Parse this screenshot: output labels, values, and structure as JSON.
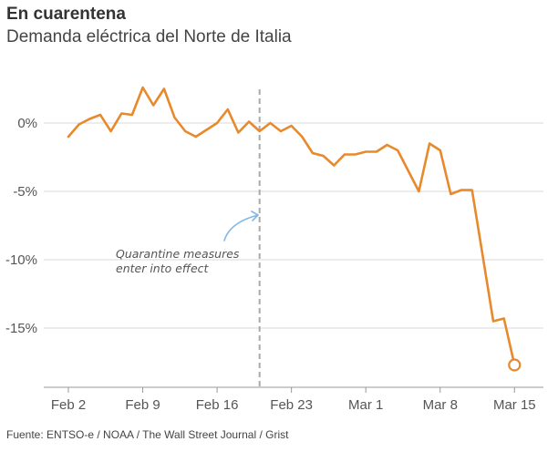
{
  "header": {
    "title": "En cuarentena",
    "subtitle": "Demanda eléctrica del Norte de Italia"
  },
  "footer": {
    "source": "Fuente: ENTSO-e / NOAA / The Wall Street Journal / Grist"
  },
  "colors": {
    "line": "#E8892B",
    "annotation_arrow": "#7FB8E6",
    "gridline": "#D9D9D9",
    "marker_line": "#AAAAAA"
  },
  "chart_data": {
    "type": "line",
    "title": "En cuarentena",
    "subtitle": "Demanda eléctrica del Norte de Italia",
    "xlabel": "",
    "ylabel": "",
    "x_tick_labels": [
      "Feb 2",
      "Feb 9",
      "Feb 16",
      "Feb 23",
      "Mar 1",
      "Mar 8",
      "Mar 15"
    ],
    "x_tick_positions": [
      2,
      9,
      16,
      23,
      30,
      37,
      44
    ],
    "y_tick_labels": [
      "0%",
      "-5%",
      "-10%",
      "-15%"
    ],
    "y_tick_values": [
      0,
      -5,
      -10,
      -15
    ],
    "ylim": [
      -19,
      3
    ],
    "grid": "horizontal",
    "legend": "none",
    "x": [
      2,
      3,
      4,
      5,
      6,
      7,
      8,
      9,
      10,
      11,
      12,
      13,
      14,
      15,
      16,
      17,
      18,
      19,
      20,
      21,
      22,
      23,
      24,
      25,
      26,
      27,
      28,
      29,
      30,
      31,
      32,
      33,
      34,
      35,
      36,
      37,
      38,
      39,
      40,
      41,
      42,
      43,
      44
    ],
    "series": [
      {
        "values": [
          -1.0,
          -0.1,
          0.3,
          0.6,
          -0.6,
          0.7,
          0.6,
          2.6,
          1.3,
          2.5,
          0.4,
          -0.6,
          -1.0,
          -0.5,
          0.0,
          1.0,
          -0.7,
          0.1,
          -0.6,
          0.0,
          -0.6,
          -0.2,
          -1.0,
          -2.2,
          -2.4,
          -3.1,
          -2.3,
          -2.3,
          -2.1,
          -2.1,
          -1.6,
          -2.0,
          -3.5,
          -5.0,
          -1.5,
          -2.0,
          -5.2,
          -4.9,
          -4.9,
          -9.7,
          -14.5,
          -14.3,
          -17.7
        ]
      }
    ],
    "vertical_marker": {
      "x": 20,
      "style": "dashed"
    },
    "annotation": "Quarantine measures\nenter into effect",
    "annotation_lines": [
      "Quarantine measures",
      "enter into effect"
    ],
    "end_marker": {
      "x": 44,
      "y": -17.7,
      "shape": "hollow-circle"
    }
  }
}
